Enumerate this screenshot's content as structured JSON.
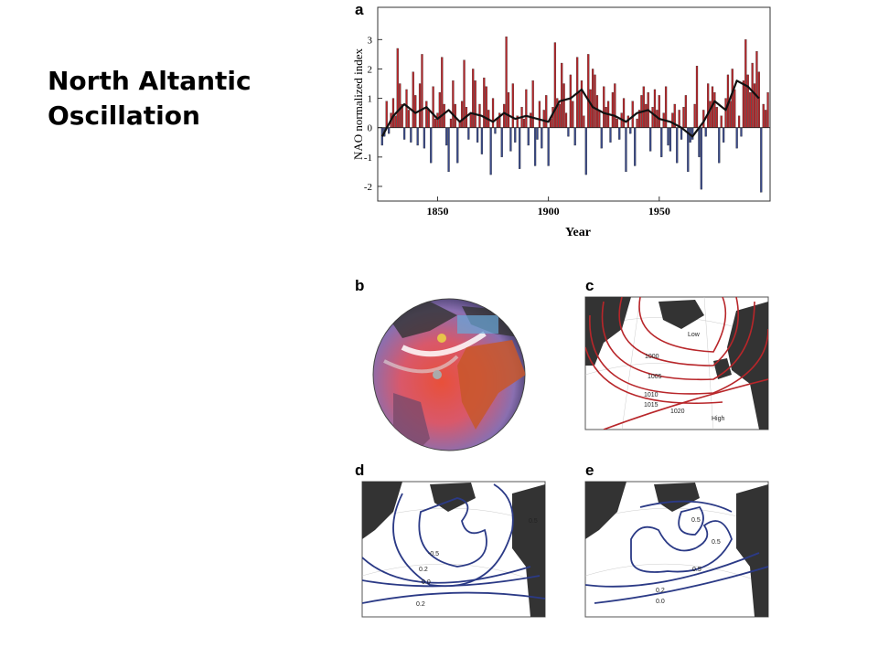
{
  "title": "North Altantic Oscillation",
  "chart_data": {
    "type": "bar",
    "panel_label": "a",
    "x_label": "Year",
    "y_label": "NAO normalized index",
    "xlim": [
      1823,
      2000
    ],
    "xticks": [
      1850,
      1900,
      1950
    ],
    "ylim": [
      -2.5,
      4.1
    ],
    "yticks": [
      -2,
      -1,
      0,
      1,
      2,
      3
    ],
    "colors": {
      "positive": "#b8262a",
      "negative": "#3a4a8a",
      "line": "#111111"
    },
    "x": [
      1825,
      1826,
      1827,
      1828,
      1829,
      1830,
      1831,
      1832,
      1833,
      1834,
      1835,
      1836,
      1837,
      1838,
      1839,
      1840,
      1841,
      1842,
      1843,
      1844,
      1845,
      1846,
      1847,
      1848,
      1849,
      1850,
      1851,
      1852,
      1853,
      1854,
      1855,
      1856,
      1857,
      1858,
      1859,
      1860,
      1861,
      1862,
      1863,
      1864,
      1865,
      1866,
      1867,
      1868,
      1869,
      1870,
      1871,
      1872,
      1873,
      1874,
      1875,
      1876,
      1877,
      1878,
      1879,
      1880,
      1881,
      1882,
      1883,
      1884,
      1885,
      1886,
      1887,
      1888,
      1889,
      1890,
      1891,
      1892,
      1893,
      1894,
      1895,
      1896,
      1897,
      1898,
      1899,
      1900,
      1901,
      1902,
      1903,
      1904,
      1905,
      1906,
      1907,
      1908,
      1909,
      1910,
      1911,
      1912,
      1913,
      1914,
      1915,
      1916,
      1917,
      1918,
      1919,
      1920,
      1921,
      1922,
      1923,
      1924,
      1925,
      1926,
      1927,
      1928,
      1929,
      1930,
      1931,
      1932,
      1933,
      1934,
      1935,
      1936,
      1937,
      1938,
      1939,
      1940,
      1941,
      1942,
      1943,
      1944,
      1945,
      1946,
      1947,
      1948,
      1949,
      1950,
      1951,
      1952,
      1953,
      1954,
      1955,
      1956,
      1957,
      1958,
      1959,
      1960,
      1961,
      1962,
      1963,
      1964,
      1965,
      1966,
      1967,
      1968,
      1969,
      1970,
      1971,
      1972,
      1973,
      1974,
      1975,
      1976,
      1977,
      1978,
      1979,
      1980,
      1981,
      1982,
      1983,
      1984,
      1985,
      1986,
      1987,
      1988,
      1989,
      1990,
      1991,
      1992,
      1993,
      1994,
      1995,
      1996,
      1997,
      1998,
      1999
    ],
    "values": [
      -0.6,
      -0.3,
      0.9,
      -0.2,
      0.5,
      1.0,
      0.4,
      2.7,
      1.5,
      0.8,
      -0.4,
      1.3,
      0.6,
      -0.5,
      1.9,
      1.1,
      -0.6,
      1.5,
      2.5,
      -0.7,
      0.9,
      0.6,
      -1.2,
      1.4,
      0.3,
      0.5,
      1.2,
      2.4,
      0.8,
      -0.6,
      -1.5,
      0.3,
      1.6,
      0.8,
      -1.2,
      0.2,
      0.9,
      2.3,
      0.7,
      -0.4,
      0.5,
      2.0,
      1.6,
      -0.5,
      0.8,
      -0.9,
      1.7,
      1.4,
      0.6,
      -1.6,
      1.0,
      -0.2,
      0.3,
      0.5,
      -1.0,
      0.8,
      3.1,
      1.2,
      -0.8,
      1.5,
      -0.5,
      0.4,
      -1.4,
      0.7,
      0.3,
      1.3,
      -0.6,
      0.5,
      1.6,
      -1.3,
      -0.4,
      0.9,
      -0.7,
      0.6,
      1.1,
      -1.3,
      0.3,
      0.7,
      2.9,
      1.0,
      0.8,
      2.2,
      1.5,
      0.5,
      -0.3,
      1.8,
      0.9,
      -0.6,
      2.4,
      1.2,
      1.6,
      0.4,
      -1.6,
      2.5,
      1.3,
      2.0,
      1.8,
      1.1,
      0.6,
      -0.7,
      1.4,
      0.7,
      0.9,
      -0.5,
      1.2,
      1.5,
      0.3,
      -0.4,
      0.5,
      1.0,
      -1.5,
      0.4,
      -0.2,
      0.9,
      -1.3,
      0.3,
      0.6,
      1.1,
      1.4,
      0.8,
      1.2,
      -0.8,
      0.7,
      1.3,
      0.6,
      1.1,
      -1.0,
      0.5,
      1.4,
      -0.6,
      -0.8,
      0.5,
      0.8,
      -1.2,
      0.6,
      -0.4,
      0.7,
      1.1,
      -1.5,
      -0.5,
      -0.4,
      0.8,
      2.1,
      -1.0,
      -2.1,
      0.6,
      -0.3,
      1.5,
      0.9,
      1.4,
      1.2,
      0.7,
      -1.2,
      0.4,
      -0.5,
      1.0,
      1.8,
      0.9,
      2.0,
      1.3,
      -0.7,
      0.4,
      -0.3,
      1.6,
      3.0,
      1.8,
      1.2,
      2.2,
      1.5,
      2.6,
      1.9,
      -2.2,
      0.8,
      0.6,
      1.2
    ],
    "smooth": {
      "x": [
        1825,
        1830,
        1835,
        1840,
        1845,
        1850,
        1855,
        1860,
        1865,
        1870,
        1875,
        1880,
        1885,
        1890,
        1895,
        1900,
        1905,
        1910,
        1915,
        1920,
        1925,
        1930,
        1935,
        1940,
        1945,
        1950,
        1955,
        1960,
        1965,
        1970,
        1975,
        1980,
        1985,
        1990,
        1995
      ],
      "values": [
        -0.3,
        0.4,
        0.8,
        0.5,
        0.7,
        0.3,
        0.6,
        0.2,
        0.5,
        0.4,
        0.2,
        0.5,
        0.3,
        0.4,
        0.3,
        0.2,
        0.9,
        1.0,
        1.3,
        0.7,
        0.5,
        0.4,
        0.2,
        0.5,
        0.6,
        0.3,
        0.2,
        0.0,
        -0.3,
        0.2,
        0.9,
        0.6,
        1.6,
        1.4,
        1.0
      ]
    }
  },
  "panels": {
    "b": {
      "label": "b"
    },
    "c": {
      "label": "c",
      "texts": [
        "Low",
        "1000",
        "1005",
        "1010",
        "1015",
        "1020",
        "High"
      ]
    },
    "d": {
      "label": "d",
      "texts": [
        "0.5",
        "-0.5",
        "0.2",
        "0.0",
        "0.2"
      ]
    },
    "e": {
      "label": "e",
      "texts": [
        "0.5",
        "0.5",
        "0.5",
        "0.2",
        "0.0"
      ]
    }
  }
}
